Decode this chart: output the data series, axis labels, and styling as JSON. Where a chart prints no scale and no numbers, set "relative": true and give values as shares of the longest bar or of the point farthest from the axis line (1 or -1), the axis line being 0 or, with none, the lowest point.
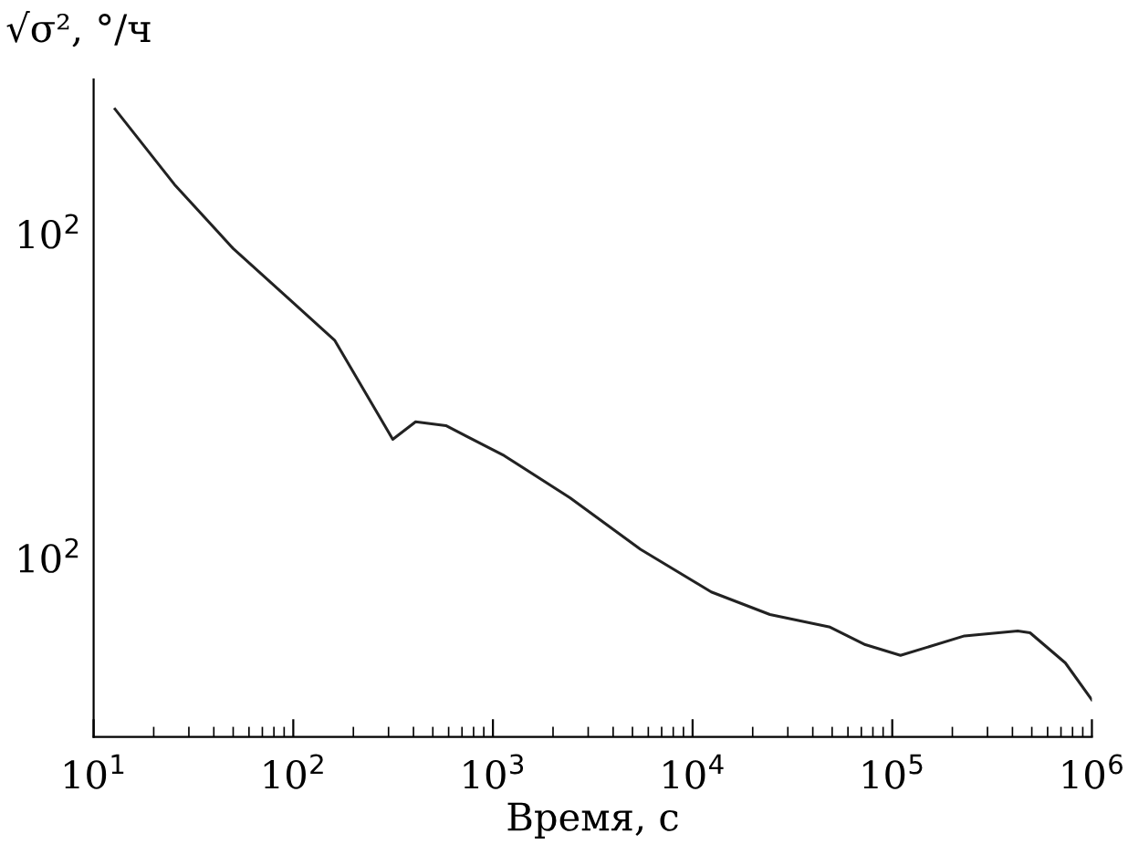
{
  "chart_data": {
    "type": "line",
    "xlabel": "Время, с",
    "ylabel": "√σ², °/ч",
    "log": "x",
    "grid": false,
    "legend": false,
    "marker": "none",
    "line_style": "solid",
    "xlim": [
      10,
      1000000
    ],
    "xticks": [
      {
        "value": 10,
        "label": "10$^{1}$"
      },
      {
        "value": 100,
        "label": "10$^{2}$"
      },
      {
        "value": 1000,
        "label": "10$^{3}$"
      },
      {
        "value": 10000,
        "label": "10$^{4}$"
      },
      {
        "value": 100000,
        "label": "10$^{5}$"
      },
      {
        "value": 1000000,
        "label": "10$^{6}$"
      }
    ],
    "relative": true,
    "annotations": [
      "10$^{2}$",
      "10$^{2}$"
    ],
    "series": [
      {
        "color": "#222222",
        "x": [
          12.8,
          25.4,
          50,
          98,
          161,
          315,
          410,
          581,
          1140,
          2430,
          5480,
          12400,
          24400,
          48800,
          73300,
          110000,
          230000,
          425000,
          490000,
          736000,
          1000000
        ],
        "values": [
          1,
          0.88,
          0.778,
          0.694,
          0.632,
          0.474,
          0.502,
          0.496,
          0.448,
          0.381,
          0.299,
          0.231,
          0.195,
          0.175,
          0.147,
          0.13,
          0.161,
          0.169,
          0.166,
          0.118,
          0.059
        ]
      }
    ]
  }
}
